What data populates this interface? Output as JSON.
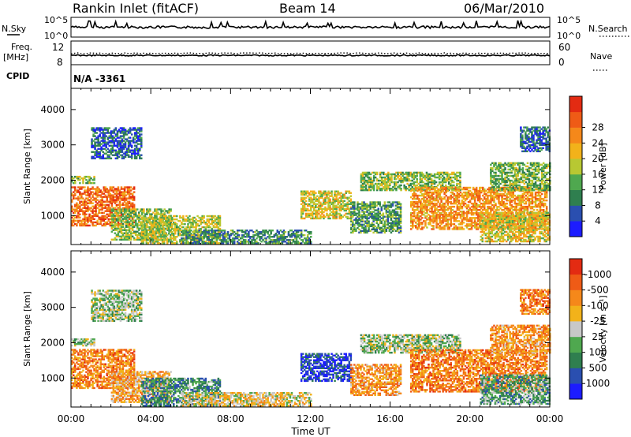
{
  "header": {
    "station": "Rankin Inlet (fitACF)",
    "beam": "Beam 14",
    "date": "06/Mar/2010"
  },
  "nsky_panel": {
    "left_label": "N.Sky",
    "right_label": "N.Search",
    "left_ticks": [
      "10^5",
      "10^0"
    ],
    "right_ticks": [
      "10^5",
      "10^0"
    ],
    "legend_line_style": "solid",
    "search_line_style": "dotted"
  },
  "freq_panel": {
    "left_label_top": "Freq.",
    "left_label_bottom": "[MHz]",
    "right_label": "Nave",
    "left_ticks": [
      "12",
      "8"
    ],
    "right_ticks": [
      "60",
      "0"
    ]
  },
  "cpid_panel": {
    "label": "CPID",
    "value": "N/A -3361"
  },
  "chart_data": [
    {
      "type": "heatmap",
      "name": "power",
      "ylabel": "Slant Range [km]",
      "ylim": [
        180,
        4600
      ],
      "yticks": [
        "1000",
        "2000",
        "3000",
        "4000"
      ],
      "xticks": [
        "00:00",
        "04:00",
        "08:00",
        "12:00",
        "16:00",
        "20:00",
        "00:00"
      ],
      "xlim_hours": [
        0,
        24
      ],
      "colorbar": {
        "label": "Power [dB]",
        "ticks": [
          "4",
          "8",
          "12",
          "16",
          "20",
          "24",
          "28"
        ],
        "colors": [
          "#1c1cff",
          "#2a4fb0",
          "#2f7f4f",
          "#4fa84f",
          "#b8c832",
          "#f2b21a",
          "#f5881a",
          "#ef5b16",
          "#e32b12"
        ]
      },
      "regions": [
        {
          "t": [
            0.0,
            3.2
          ],
          "r": [
            700,
            1800
          ],
          "level": 0.8
        },
        {
          "t": [
            0.0,
            1.2
          ],
          "r": [
            1900,
            2100
          ],
          "level": 0.45
        },
        {
          "t": [
            1.0,
            3.5
          ],
          "r": [
            2600,
            3500
          ],
          "level": 0.2
        },
        {
          "t": [
            2.0,
            5.0
          ],
          "r": [
            300,
            1200
          ],
          "level": 0.45
        },
        {
          "t": [
            3.5,
            7.5
          ],
          "r": [
            200,
            1000
          ],
          "level": 0.5
        },
        {
          "t": [
            5.5,
            12.0
          ],
          "r": [
            200,
            600
          ],
          "level": 0.3
        },
        {
          "t": [
            11.5,
            14.0
          ],
          "r": [
            900,
            1700
          ],
          "level": 0.55
        },
        {
          "t": [
            14.5,
            19.5
          ],
          "r": [
            1700,
            2200
          ],
          "level": 0.45
        },
        {
          "t": [
            14.0,
            16.5
          ],
          "r": [
            500,
            1400
          ],
          "level": 0.35
        },
        {
          "t": [
            17.0,
            23.8
          ],
          "r": [
            600,
            1800
          ],
          "level": 0.7
        },
        {
          "t": [
            20.5,
            24.0
          ],
          "r": [
            250,
            1100
          ],
          "level": 0.55
        },
        {
          "t": [
            21.0,
            24.0
          ],
          "r": [
            1700,
            2500
          ],
          "level": 0.4
        },
        {
          "t": [
            22.5,
            24.0
          ],
          "r": [
            2800,
            3500
          ],
          "level": 0.2
        }
      ]
    },
    {
      "type": "heatmap",
      "name": "velocity",
      "ylabel": "Slant Range [km]",
      "ylim": [
        180,
        4600
      ],
      "yticks": [
        "1000",
        "2000",
        "3000",
        "4000"
      ],
      "xticks": [
        "00:00",
        "04:00",
        "08:00",
        "12:00",
        "16:00",
        "20:00",
        "00:00"
      ],
      "xlim_hours": [
        0,
        24
      ],
      "xlabel": "Time UT",
      "colorbar": {
        "label": "Velocity [m s⁻¹]",
        "ticks": [
          "1000",
          "500",
          "100",
          "25",
          "-25",
          "-100",
          "-500",
          "-1000"
        ],
        "colors": [
          "#1c1cff",
          "#2a4fb0",
          "#2f7f4f",
          "#4fa84f",
          "#c8c8c8",
          "#f2b21a",
          "#f5881a",
          "#ef5b16",
          "#e32b12"
        ]
      },
      "regions": [
        {
          "t": [
            0.0,
            3.2
          ],
          "r": [
            700,
            1800
          ],
          "level": 0.75
        },
        {
          "t": [
            0.0,
            1.2
          ],
          "r": [
            1900,
            2100
          ],
          "level": 0.45
        },
        {
          "t": [
            1.0,
            3.5
          ],
          "r": [
            2600,
            3500
          ],
          "level": 0.45
        },
        {
          "t": [
            2.0,
            5.0
          ],
          "r": [
            300,
            1200
          ],
          "level": 0.65
        },
        {
          "t": [
            3.5,
            7.5
          ],
          "r": [
            200,
            1000
          ],
          "level": 0.3
        },
        {
          "t": [
            5.5,
            12.0
          ],
          "r": [
            200,
            600
          ],
          "level": 0.55
        },
        {
          "t": [
            11.5,
            14.0
          ],
          "r": [
            900,
            1700
          ],
          "level": 0.12
        },
        {
          "t": [
            14.5,
            19.5
          ],
          "r": [
            1700,
            2200
          ],
          "level": 0.45
        },
        {
          "t": [
            14.0,
            16.5
          ],
          "r": [
            500,
            1400
          ],
          "level": 0.7
        },
        {
          "t": [
            17.0,
            23.8
          ],
          "r": [
            600,
            1800
          ],
          "level": 0.75
        },
        {
          "t": [
            20.5,
            24.0
          ],
          "r": [
            250,
            1100
          ],
          "level": 0.35
        },
        {
          "t": [
            21.0,
            24.0
          ],
          "r": [
            1700,
            2500
          ],
          "level": 0.7
        },
        {
          "t": [
            22.5,
            24.0
          ],
          "r": [
            2800,
            3500
          ],
          "level": 0.75
        }
      ]
    }
  ]
}
